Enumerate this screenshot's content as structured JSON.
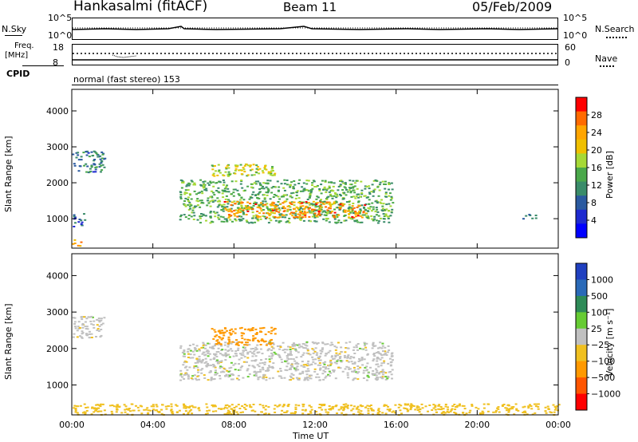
{
  "header": {
    "station": "Hankasalmi (fitACF)",
    "beam": "Beam 11",
    "date": "05/Feb/2009"
  },
  "noise_panel": {
    "left_label": "N.Sky",
    "right_label": "N.Search",
    "ticks_left": [
      "10^5",
      "10^0"
    ],
    "ticks_right": [
      "10^5",
      "10^0"
    ]
  },
  "freq_panel": {
    "left_label_1": "Freq.",
    "left_label_2": "[MHz]",
    "right_label": "Nave",
    "ticks_left": [
      "18",
      "8"
    ],
    "ticks_right": [
      "60",
      "0"
    ]
  },
  "cpid": {
    "label": "CPID",
    "value": "normal (fast stereo) 153"
  },
  "power_colorbar": {
    "label": "Power [dB]",
    "ticks": [
      "28",
      "24",
      "20",
      "16",
      "12",
      "8",
      "4"
    ],
    "colors": [
      "#ff0000",
      "#ff6a00",
      "#ffa500",
      "#f0c000",
      "#a6d936",
      "#4aa84a",
      "#3a8c6a",
      "#2b5aa0",
      "#1e2ad0",
      "#0000ff"
    ]
  },
  "velocity_colorbar": {
    "label": "Velocity [m s⁻¹]",
    "ticks": [
      "1000",
      "500",
      "100",
      "25",
      "−25",
      "−100",
      "−500",
      "−1000"
    ],
    "colors": [
      "#2040c0",
      "#2a6ab8",
      "#2e8b57",
      "#66cc33",
      "#c0c0c0",
      "#f0c020",
      "#ff9900",
      "#ff5500",
      "#ff0000"
    ]
  },
  "chart_data": {
    "type": "heatmap",
    "title": "Hankasalmi (fitACF) Beam 11 05/Feb/2009",
    "xlabel": "Time UT",
    "ylabel": "Slant Range [km]",
    "x_ticks": [
      "00:00",
      "04:00",
      "08:00",
      "12:00",
      "16:00",
      "20:00",
      "00:00"
    ],
    "y_ticks": [
      1000,
      2000,
      3000,
      4000
    ],
    "xlim_hours": [
      0,
      24
    ],
    "ylim_km": [
      180,
      4600
    ],
    "panels": [
      {
        "name": "Power",
        "units": "dB",
        "regions": [
          {
            "t": [
              5.3,
              15.8
            ],
            "r": [
              900,
              2100
            ],
            "value_db": 14
          },
          {
            "t": [
              7.5,
              14.5
            ],
            "r": [
              1050,
              1500
            ],
            "value_db": 26
          },
          {
            "t": [
              6.8,
              10.0
            ],
            "r": [
              2200,
              2550
            ],
            "value_db": 18
          },
          {
            "t": [
              0.0,
              1.6
            ],
            "r": [
              2300,
              2900
            ],
            "value_db": 10
          },
          {
            "t": [
              0.0,
              0.6
            ],
            "r": [
              800,
              1200
            ],
            "value_db": 8
          },
          {
            "t": [
              0.0,
              0.5
            ],
            "r": [
              250,
              450
            ],
            "value_db": 24
          },
          {
            "t": [
              22.2,
              23.0
            ],
            "r": [
              1000,
              1150
            ],
            "value_db": 8
          }
        ]
      },
      {
        "name": "Velocity",
        "units": "m s-1",
        "regions": [
          {
            "t": [
              5.3,
              15.8
            ],
            "r": [
              1150,
              2200
            ],
            "value_ms": 0
          },
          {
            "t": [
              6.8,
              10.0
            ],
            "r": [
              2100,
              2600
            ],
            "value_ms": -400
          },
          {
            "t": [
              0.0,
              1.6
            ],
            "r": [
              2300,
              2900
            ],
            "value_ms": 0
          },
          {
            "t": [
              0.0,
              24.0
            ],
            "r": [
              200,
              500
            ],
            "value_ms": -60
          }
        ]
      }
    ]
  }
}
